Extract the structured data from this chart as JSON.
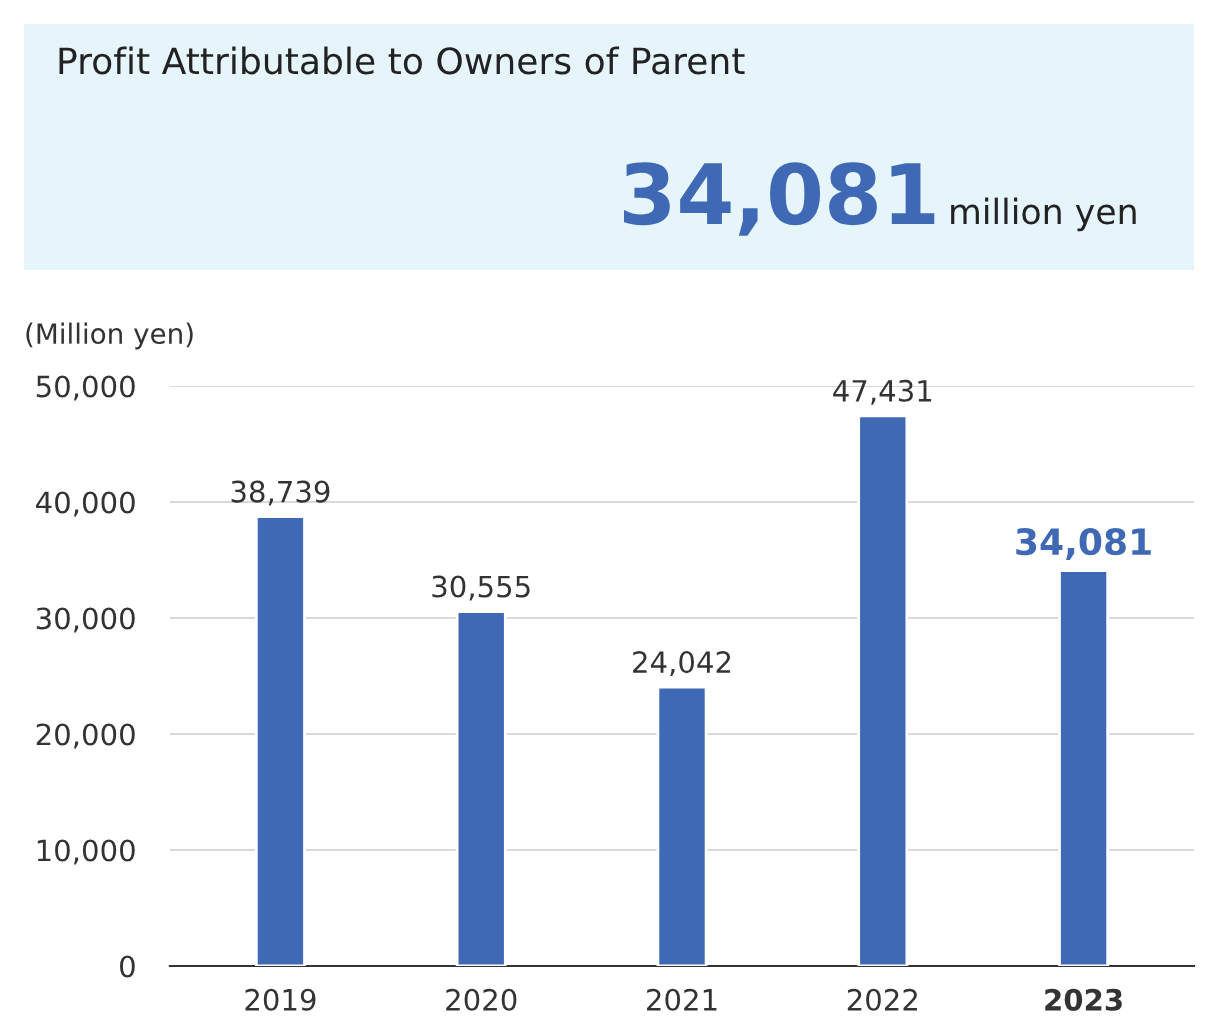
{
  "chart_data": {
    "type": "bar",
    "title": "Profit Attributable to Owners of Parent",
    "annotations": [
      "34,081",
      "million yen"
    ],
    "ylabel": "(Million yen)",
    "categories": [
      "2019",
      "2020",
      "2021",
      "2022",
      "2023"
    ],
    "values": [
      38739,
      30555,
      24042,
      47431,
      34081
    ],
    "color": "#3f69b5",
    "ylim": [
      0,
      50000
    ],
    "yticks": [
      {
        "value": 0,
        "label": "0"
      },
      {
        "value": 10000,
        "label": "10,000"
      },
      {
        "value": 20000,
        "label": "20,000"
      },
      {
        "value": 30000,
        "label": "30,000"
      },
      {
        "value": 40000,
        "label": "40,000"
      },
      {
        "value": 50000,
        "label": "50,000"
      }
    ],
    "value_labels": [
      "38,739",
      "30,555",
      "24,042",
      "47,431",
      "34,081"
    ],
    "grid": "y",
    "legend": false
  }
}
